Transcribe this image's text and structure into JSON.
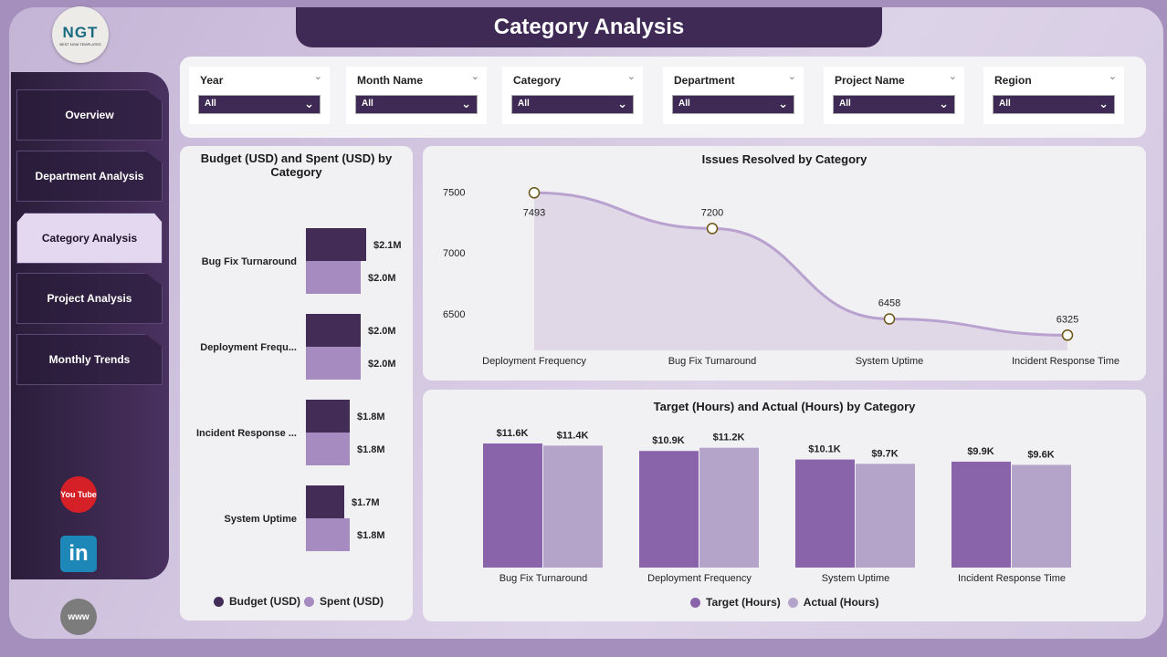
{
  "header": {
    "title": "Category Analysis",
    "logo_text": "NGT",
    "logo_sub": "BEST NGM TEMPLATES"
  },
  "sidebar": {
    "items": [
      {
        "label": "Overview"
      },
      {
        "label": "Department Analysis"
      },
      {
        "label": "Category Analysis",
        "active": true
      },
      {
        "label": "Project Analysis"
      },
      {
        "label": "Monthly Trends"
      }
    ],
    "social": {
      "youtube": "You Tube",
      "linkedin": "in",
      "web": "www"
    }
  },
  "filters": [
    {
      "label": "Year",
      "value": "All"
    },
    {
      "label": "Month Name",
      "value": "All"
    },
    {
      "label": "Category",
      "value": "All"
    },
    {
      "label": "Department",
      "value": "All"
    },
    {
      "label": "Project Name",
      "value": "All"
    },
    {
      "label": "Region",
      "value": "All"
    }
  ],
  "colors": {
    "dark": "#432d57",
    "light": "#a58bbf",
    "target": "#8a64ab",
    "actual": "#b4a4c9",
    "line": "#b9a2cf"
  },
  "chart_data": [
    {
      "type": "bar",
      "orientation": "horizontal",
      "title": "Budget (USD) and Spent (USD) by Category",
      "categories": [
        "Bug Fix Turnaround",
        "Deployment Frequ...",
        "Incident Response ...",
        "System Uptime"
      ],
      "series": [
        {
          "name": "Budget (USD)",
          "values": [
            2.1,
            2.0,
            1.8,
            1.7
          ],
          "labels": [
            "$2.1M",
            "$2.0M",
            "$1.8M",
            "$1.7M"
          ]
        },
        {
          "name": "Spent (USD)",
          "values": [
            2.0,
            2.0,
            1.8,
            1.8
          ],
          "labels": [
            "$2.0M",
            "$2.0M",
            "$1.8M",
            "$1.8M"
          ]
        }
      ],
      "unit": "M USD",
      "legend": "bottom"
    },
    {
      "type": "area",
      "title": "Issues Resolved by Category",
      "categories": [
        "Deployment Frequency",
        "Bug Fix Turnaround",
        "System Uptime",
        "Incident Response Time"
      ],
      "values": [
        7493,
        7200,
        6458,
        6325
      ],
      "yticks": [
        6500,
        7000,
        7500
      ],
      "ylim": [
        6200,
        7600
      ]
    },
    {
      "type": "bar",
      "title": "Target (Hours) and Actual (Hours) by Category",
      "categories": [
        "Bug Fix Turnaround",
        "Deployment Frequency",
        "System Uptime",
        "Incident Response Time"
      ],
      "series": [
        {
          "name": "Target (Hours)",
          "values": [
            11.6,
            10.9,
            10.1,
            9.9
          ],
          "labels": [
            "$11.6K",
            "$10.9K",
            "$10.1K",
            "$9.9K"
          ]
        },
        {
          "name": "Actual (Hours)",
          "values": [
            11.4,
            11.2,
            9.7,
            9.6
          ],
          "labels": [
            "$11.4K",
            "$11.2K",
            "$9.7K",
            "$9.6K"
          ]
        }
      ],
      "unit": "K",
      "legend": "bottom",
      "ylim": [
        0,
        12
      ]
    }
  ]
}
